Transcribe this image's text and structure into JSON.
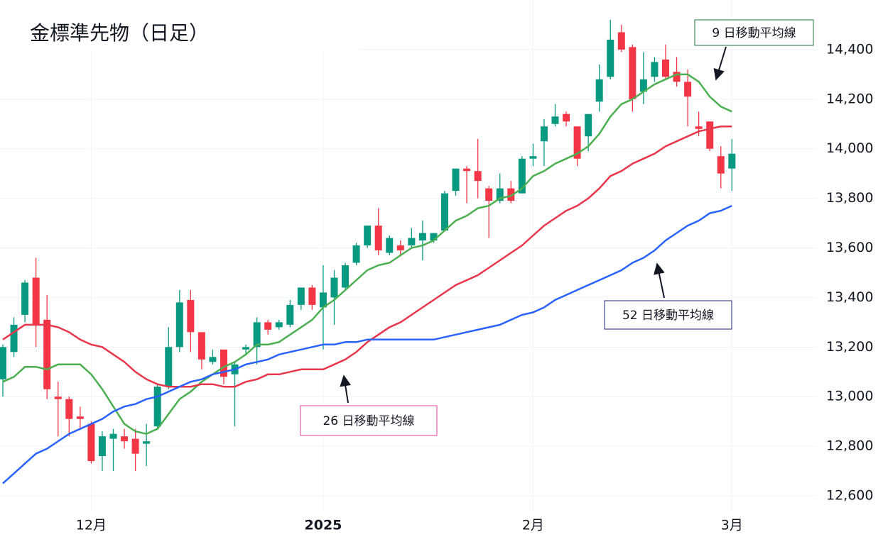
{
  "chart_data": {
    "type": "candlestick",
    "title": "金標準先物（日足）",
    "categories": [
      null,
      null,
      null,
      null,
      null,
      null,
      null,
      null,
      "12月",
      null,
      null,
      null,
      null,
      null,
      null,
      null,
      null,
      null,
      null,
      null,
      null,
      null,
      null,
      null,
      null,
      null,
      null,
      null,
      null,
      "2025",
      null,
      null,
      null,
      null,
      null,
      null,
      null,
      null,
      null,
      null,
      null,
      null,
      null,
      null,
      null,
      null,
      null,
      null,
      "2月",
      null,
      null,
      null,
      null,
      null,
      null,
      null,
      null,
      null,
      null,
      null,
      null,
      null,
      null,
      null,
      null,
      null,
      "3月"
    ],
    "open": [
      13070,
      13180,
      13330,
      13480,
      13310,
      13000,
      12990,
      12920,
      12890,
      12760,
      12830,
      12840,
      12830,
      12810,
      12880,
      13040,
      13200,
      13390,
      13260,
      13140,
      13190,
      13090,
      13190,
      13200,
      13300,
      13280,
      13290,
      13370,
      13440,
      13360,
      13400,
      13440,
      13540,
      13610,
      13690,
      13580,
      13610,
      13610,
      13630,
      13630,
      13670,
      13830,
      13920,
      13910,
      13840,
      13790,
      13840,
      13820,
      13960,
      14030,
      14100,
      14140,
      14090,
      14050,
      14190,
      14290,
      14470,
      14410,
      14230,
      14290,
      14360,
      14310,
      14270,
      14090,
      14110,
      13970,
      13920
    ],
    "high": [
      13210,
      13320,
      13470,
      13560,
      13410,
      13060,
      13000,
      12960,
      12900,
      12860,
      12870,
      12870,
      12870,
      12890,
      13050,
      13280,
      13430,
      13430,
      13260,
      13190,
      13190,
      13140,
      13210,
      13320,
      13310,
      13310,
      13390,
      13440,
      13450,
      13530,
      13510,
      13540,
      13620,
      13690,
      13760,
      13650,
      13630,
      13680,
      13710,
      13660,
      13830,
      13920,
      13930,
      14040,
      13850,
      13900,
      13870,
      13970,
      14020,
      14120,
      14180,
      14150,
      14090,
      14140,
      14340,
      14520,
      14500,
      14420,
      14390,
      14370,
      14420,
      14370,
      14320,
      14150,
      14110,
      14010,
      14040
    ],
    "low": [
      13000,
      13160,
      13300,
      13200,
      12990,
      12840,
      12840,
      12870,
      12730,
      12700,
      12700,
      12790,
      12700,
      12720,
      12870,
      13030,
      13180,
      13180,
      13110,
      13130,
      13050,
      12880,
      13170,
      13130,
      13250,
      13270,
      13280,
      13350,
      13350,
      13190,
      13290,
      13430,
      13530,
      13600,
      13570,
      13570,
      13570,
      13600,
      13550,
      13620,
      13670,
      13810,
      13780,
      13800,
      13640,
      13780,
      13780,
      13820,
      13930,
      13930,
      14090,
      14090,
      13930,
      13990,
      14150,
      14280,
      14390,
      14150,
      14180,
      14270,
      14280,
      14250,
      14090,
      14050,
      13990,
      13840,
      13830
    ],
    "close": [
      13200,
      13290,
      13460,
      13290,
      13030,
      12990,
      12910,
      12910,
      12740,
      12840,
      12850,
      12820,
      12770,
      12820,
      13040,
      13200,
      13380,
      13260,
      13150,
      13160,
      13080,
      13130,
      13200,
      13300,
      13270,
      13300,
      13370,
      13440,
      13370,
      13420,
      13480,
      13530,
      13610,
      13690,
      13590,
      13640,
      13590,
      13640,
      13660,
      13660,
      13820,
      13920,
      13910,
      13870,
      13790,
      13840,
      13790,
      13960,
      13970,
      14090,
      14130,
      14110,
      13960,
      14140,
      14280,
      14440,
      14400,
      14200,
      14280,
      14350,
      14290,
      14270,
      14210,
      14080,
      14000,
      13900,
      13980
    ],
    "up_color": "#089981",
    "down_color": "#f23645",
    "series": [
      {
        "name": "9 日移動平均線",
        "color": "#4caf50",
        "values": [
          13060,
          13080,
          13120,
          13120,
          13110,
          13130,
          13130,
          13130,
          13090,
          13030,
          12960,
          12890,
          12860,
          12850,
          12870,
          12930,
          12990,
          13020,
          13060,
          13090,
          13120,
          13140,
          13170,
          13210,
          13210,
          13220,
          13250,
          13280,
          13310,
          13360,
          13390,
          13430,
          13470,
          13510,
          13530,
          13540,
          13570,
          13600,
          13610,
          13630,
          13670,
          13710,
          13730,
          13760,
          13770,
          13800,
          13810,
          13840,
          13890,
          13910,
          13940,
          13960,
          13980,
          14010,
          14060,
          14130,
          14180,
          14200,
          14230,
          14260,
          14280,
          14300,
          14300,
          14270,
          14210,
          14170,
          14150
        ]
      },
      {
        "name": "26 日移動平均線",
        "color": "#e8364a",
        "values": [
          13230,
          13260,
          13290,
          13290,
          13290,
          13280,
          13260,
          13230,
          13210,
          13200,
          13170,
          13140,
          13100,
          13070,
          13050,
          13040,
          13040,
          13040,
          13050,
          13050,
          13040,
          13040,
          13060,
          13070,
          13090,
          13090,
          13100,
          13110,
          13110,
          13110,
          13130,
          13150,
          13180,
          13220,
          13250,
          13280,
          13300,
          13330,
          13360,
          13390,
          13420,
          13450,
          13470,
          13490,
          13520,
          13550,
          13580,
          13610,
          13650,
          13690,
          13720,
          13750,
          13770,
          13800,
          13840,
          13890,
          13910,
          13940,
          13960,
          13980,
          14010,
          14030,
          14050,
          14070,
          14080,
          14090,
          14090
        ]
      },
      {
        "name": "52 日移動平均線",
        "color": "#2962ff",
        "values": [
          12650,
          12690,
          12730,
          12770,
          12790,
          12820,
          12850,
          12870,
          12890,
          12910,
          12940,
          12960,
          12970,
          12990,
          13000,
          13020,
          13040,
          13060,
          13070,
          13090,
          13100,
          13110,
          13130,
          13140,
          13150,
          13170,
          13180,
          13190,
          13200,
          13210,
          13210,
          13220,
          13220,
          13230,
          13230,
          13230,
          13230,
          13230,
          13230,
          13230,
          13240,
          13250,
          13260,
          13270,
          13280,
          13290,
          13310,
          13330,
          13340,
          13360,
          13390,
          13410,
          13430,
          13450,
          13470,
          13490,
          13510,
          13540,
          13560,
          13590,
          13630,
          13660,
          13690,
          13710,
          13740,
          13750,
          13770
        ]
      }
    ],
    "ylim": [
      12540,
      14600
    ],
    "yticks": [
      {
        "value": 12600,
        "label": "12,600"
      },
      {
        "value": 12800,
        "label": "12,800"
      },
      {
        "value": 13000,
        "label": "13,000"
      },
      {
        "value": 13200,
        "label": "13,200"
      },
      {
        "value": 13400,
        "label": "13,400"
      },
      {
        "value": 13600,
        "label": "13,600"
      },
      {
        "value": 13800,
        "label": "13,800"
      },
      {
        "value": 14000,
        "label": "14,000"
      },
      {
        "value": 14200,
        "label": "14,200"
      },
      {
        "value": 14400,
        "label": "14,400"
      }
    ],
    "grid": true
  }
}
